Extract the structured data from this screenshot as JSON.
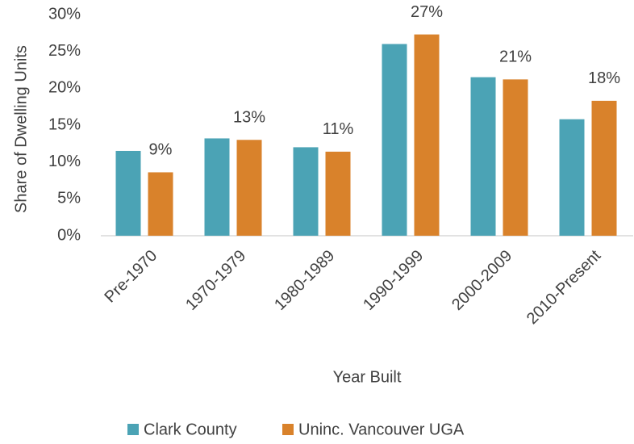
{
  "chart_data": {
    "type": "bar",
    "x_label": "Year Built",
    "y_label": "Share of Dwelling Units",
    "categories": [
      "Pre-1970",
      "1970-1979",
      "1980-1989",
      "1990-1999",
      "2000-2009",
      "2010-Present"
    ],
    "series": [
      {
        "name": "Clark County",
        "color": "#4ba3b5",
        "values": [
          11.5,
          13.2,
          12,
          26,
          21.5,
          15.8
        ]
      },
      {
        "name": "Uninc. Vancouver UGA",
        "color": "#d9822b",
        "values": [
          8.6,
          13,
          11.4,
          27.3,
          21.2,
          18.3
        ],
        "value_labels": [
          "9%",
          "13%",
          "11%",
          "27%",
          "21%",
          "18%"
        ]
      }
    ],
    "ylim": [
      0,
      30
    ],
    "yticks": [
      {
        "value": 0,
        "label": "0%"
      },
      {
        "value": 5,
        "label": "5%"
      },
      {
        "value": 10,
        "label": "10%"
      },
      {
        "value": 15,
        "label": "15%"
      },
      {
        "value": 20,
        "label": "20%"
      },
      {
        "value": 25,
        "label": "25%"
      },
      {
        "value": 30,
        "label": "30%"
      }
    ],
    "grid": false,
    "legend": "bottom"
  }
}
